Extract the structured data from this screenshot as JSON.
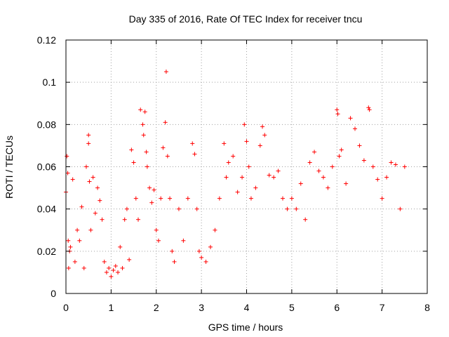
{
  "chart_data": {
    "type": "scatter",
    "title": "Day 335 of 2016, Rate Of TEC Index for receiver tncu",
    "xlabel": "GPS time / hours",
    "ylabel": "ROTI / TECUs",
    "xlim": [
      0,
      8
    ],
    "ylim": [
      0,
      0.12
    ],
    "xticks": [
      0,
      1,
      2,
      3,
      4,
      5,
      6,
      7,
      8
    ],
    "xtick_labels": [
      "0",
      "1",
      "2",
      "3",
      "4",
      "5",
      "6",
      "7",
      "8"
    ],
    "yticks": [
      0,
      0.02,
      0.04,
      0.06,
      0.08,
      0.1,
      0.12
    ],
    "ytick_labels": [
      "0",
      "0.02",
      "0.04",
      "0.06",
      "0.08",
      "0.1",
      "0.12"
    ],
    "grid": true,
    "marker": "+",
    "series": [
      {
        "name": "ROTI",
        "color": "#ff0000",
        "x": [
          0.0,
          0.02,
          0.04,
          0.05,
          0.06,
          0.08,
          0.1,
          0.15,
          0.2,
          0.25,
          0.3,
          0.35,
          0.4,
          0.45,
          0.5,
          0.5,
          0.52,
          0.55,
          0.6,
          0.65,
          0.7,
          0.75,
          0.8,
          0.85,
          0.9,
          0.95,
          1.0,
          1.05,
          1.1,
          1.15,
          1.2,
          1.25,
          1.3,
          1.35,
          1.4,
          1.45,
          1.5,
          1.55,
          1.6,
          1.65,
          1.7,
          1.72,
          1.75,
          1.78,
          1.8,
          1.85,
          1.9,
          1.95,
          2.0,
          2.05,
          2.1,
          2.15,
          2.2,
          2.22,
          2.25,
          2.3,
          2.35,
          2.4,
          2.5,
          2.6,
          2.7,
          2.8,
          2.85,
          2.9,
          2.95,
          3.0,
          3.1,
          3.2,
          3.3,
          3.4,
          3.5,
          3.55,
          3.6,
          3.7,
          3.8,
          3.9,
          3.95,
          4.0,
          4.05,
          4.1,
          4.2,
          4.3,
          4.35,
          4.4,
          4.5,
          4.6,
          4.7,
          4.8,
          4.9,
          5.0,
          5.1,
          5.2,
          5.3,
          5.4,
          5.5,
          5.6,
          5.7,
          5.8,
          5.9,
          6.0,
          6.02,
          6.05,
          6.1,
          6.2,
          6.3,
          6.4,
          6.5,
          6.6,
          6.7,
          6.72,
          6.8,
          6.9,
          7.0,
          7.1,
          7.2,
          7.3,
          7.4,
          7.5
        ],
        "y": [
          0.048,
          0.065,
          0.057,
          0.025,
          0.012,
          0.02,
          0.022,
          0.054,
          0.015,
          0.03,
          0.025,
          0.041,
          0.012,
          0.06,
          0.071,
          0.075,
          0.053,
          0.03,
          0.055,
          0.038,
          0.05,
          0.044,
          0.035,
          0.015,
          0.01,
          0.012,
          0.008,
          0.011,
          0.013,
          0.01,
          0.022,
          0.012,
          0.035,
          0.04,
          0.016,
          0.068,
          0.062,
          0.045,
          0.035,
          0.087,
          0.08,
          0.075,
          0.086,
          0.067,
          0.06,
          0.05,
          0.043,
          0.049,
          0.03,
          0.025,
          0.045,
          0.069,
          0.081,
          0.105,
          0.065,
          0.045,
          0.02,
          0.015,
          0.04,
          0.025,
          0.045,
          0.071,
          0.066,
          0.04,
          0.02,
          0.017,
          0.015,
          0.022,
          0.03,
          0.045,
          0.071,
          0.055,
          0.062,
          0.065,
          0.048,
          0.055,
          0.08,
          0.072,
          0.06,
          0.045,
          0.05,
          0.07,
          0.079,
          0.075,
          0.056,
          0.055,
          0.058,
          0.045,
          0.04,
          0.045,
          0.04,
          0.052,
          0.035,
          0.062,
          0.067,
          0.058,
          0.055,
          0.05,
          0.06,
          0.087,
          0.085,
          0.065,
          0.068,
          0.052,
          0.083,
          0.078,
          0.07,
          0.063,
          0.088,
          0.087,
          0.06,
          0.054,
          0.045,
          0.055,
          0.062,
          0.061,
          0.04,
          0.06
        ]
      }
    ]
  }
}
